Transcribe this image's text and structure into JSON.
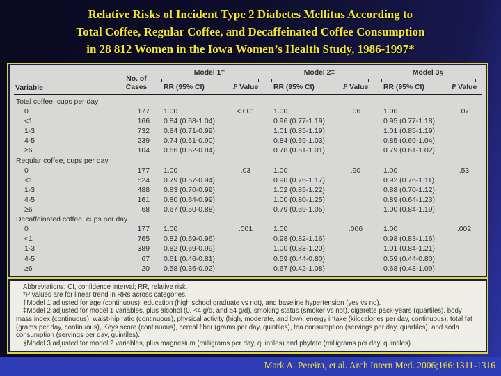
{
  "title": "Relative Risks of Incident Type 2 Diabetes Mellitus According to\nTotal Coffee, Regular Coffee, and Decaffeinated Coffee Consumption\nin 28 812 Women in the Iowa Women’s Health Study, 1986-1997*",
  "table": {
    "col_variable": "Variable",
    "col_cases": "No. of\nCases",
    "models": [
      {
        "name": "Model 1†",
        "rr": "RR (95% CI)",
        "p_italic": "P",
        "p_word": "Value"
      },
      {
        "name": "Model 2‡",
        "rr": "RR (95% CI)",
        "p_italic": "P",
        "p_word": "Value"
      },
      {
        "name": "Model 3§",
        "rr": "RR (95% CI)",
        "p_italic": "P",
        "p_word": "Value"
      }
    ],
    "sections": [
      {
        "label": "Total coffee, cups per day",
        "rows": [
          {
            "category": "0",
            "cases": "177",
            "m1rr": "1.00",
            "m1p": "<.001",
            "m2rr": "1.00",
            "m2p": ".06",
            "m3rr": "1.00",
            "m3p": ".07"
          },
          {
            "category": "<1",
            "cases": "166",
            "m1rr": "0.84 (0.68-1.04)",
            "m1p": "",
            "m2rr": "0.96 (0.77-1.19)",
            "m2p": "",
            "m3rr": "0.95 (0.77-1.18)",
            "m3p": ""
          },
          {
            "category": "1-3",
            "cases": "732",
            "m1rr": "0.84 (0.71-0.99)",
            "m1p": "",
            "m2rr": "1.01 (0.85-1.19)",
            "m2p": "",
            "m3rr": "1.01 (0.85-1.19)",
            "m3p": ""
          },
          {
            "category": "4-5",
            "cases": "239",
            "m1rr": "0.74 (0.61-0.90)",
            "m1p": "",
            "m2rr": "0.84 (0.69-1.03)",
            "m2p": "",
            "m3rr": "0.85 (0.69-1.04)",
            "m3p": ""
          },
          {
            "category": "≥6",
            "cases": "104",
            "m1rr": "0.66 (0.52-0.84)",
            "m1p": "",
            "m2rr": "0.78 (0.61-1.01)",
            "m2p": "",
            "m3rr": "0.79 (0.61-1.02)",
            "m3p": ""
          }
        ]
      },
      {
        "label": "Regular coffee, cups per day",
        "rows": [
          {
            "category": "0",
            "cases": "177",
            "m1rr": "1.00",
            "m1p": ".03",
            "m2rr": "1.00",
            "m2p": ".90",
            "m3rr": "1.00",
            "m3p": ".53"
          },
          {
            "category": "<1",
            "cases": "524",
            "m1rr": "0.79 (0.67-0.94)",
            "m1p": "",
            "m2rr": "0.90 (0.76-1.17)",
            "m2p": "",
            "m3rr": "0.92 (0.76-1.11)",
            "m3p": ""
          },
          {
            "category": "1-3",
            "cases": "488",
            "m1rr": "0.83 (0.70-0.99)",
            "m1p": "",
            "m2rr": "1.02 (0.85-1.22)",
            "m2p": "",
            "m3rr": "0.88 (0.70-1.12)",
            "m3p": ""
          },
          {
            "category": "4-5",
            "cases": "161",
            "m1rr": "0.80 (0.64-0.99)",
            "m1p": "",
            "m2rr": "1.00 (0.80-1.25)",
            "m2p": "",
            "m3rr": "0.89 (0.64-1.23)",
            "m3p": ""
          },
          {
            "category": "≥6",
            "cases": "68",
            "m1rr": "0.67 (0.50-0.88)",
            "m1p": "",
            "m2rr": "0.79 (0.59-1.05)",
            "m2p": "",
            "m3rr": "1.00 (0.84-1.19)",
            "m3p": ""
          }
        ]
      },
      {
        "label": "Decaffeinated coffee, cups per day",
        "rows": [
          {
            "category": "0",
            "cases": "177",
            "m1rr": "1.00",
            "m1p": ".001",
            "m2rr": "1.00",
            "m2p": ".006",
            "m3rr": "1.00",
            "m3p": ".002"
          },
          {
            "category": "<1",
            "cases": "765",
            "m1rr": "0.82 (0.69-0.96)",
            "m1p": "",
            "m2rr": "0.98 (0.82-1.16)",
            "m2p": "",
            "m3rr": "0.98 (0.83-1.16)",
            "m3p": ""
          },
          {
            "category": "1-3",
            "cases": "389",
            "m1rr": "0.82 (0.69-0.99)",
            "m1p": "",
            "m2rr": "1.00 (0.83-1.20)",
            "m2p": "",
            "m3rr": "1.01 (0.84-1.21)",
            "m3p": ""
          },
          {
            "category": "4-5",
            "cases": "67",
            "m1rr": "0.61 (0.46-0.81)",
            "m1p": "",
            "m2rr": "0.59 (0.44-0.80)",
            "m2p": "",
            "m3rr": "0.59 (0.44-0.80)",
            "m3p": ""
          },
          {
            "category": "≥6",
            "cases": "20",
            "m1rr": "0.58 (0.36-0.92)",
            "m1p": "",
            "m2rr": "0.67 (0.42-1.08)",
            "m2p": "",
            "m3rr": "0.68 (0.43-1.09)",
            "m3p": ""
          }
        ]
      }
    ]
  },
  "footnotes": [
    "Abbreviations: CI, confidence interval; RR, relative risk.",
    "*P values are for linear trend in RRs across categories.",
    "†Model 1 adjusted for age (continuous), education (high school graduate vs not), and baseline hypertension (yes vs no).",
    "‡Model 2 adjusted for model 1 variables, plus alcohol (0, <4 g/d, and ≥4 g/d), smoking status (smoker vs not), cigarette pack-years (quartiles), body mass index (continuous), waist-hip ratio (continuous), physical activity (high, moderate, and low), energy intake (kilocalories per day, continuous), total fat (grams per day, continuous), Keys score (continuous), cereal fiber (grams per day, quintiles), tea consumption (servings per day, quartiles), and soda consumption (servings per day, quintiles).",
    "§Model 3 adjusted for model 2 variables, plus magnesium (milligrams per day, quintiles) and phytate (milligrams per day, quintiles)."
  ],
  "citation": "Mark A. Pereira, et al. Arch Intern Med. 2006;166:1311-1316"
}
